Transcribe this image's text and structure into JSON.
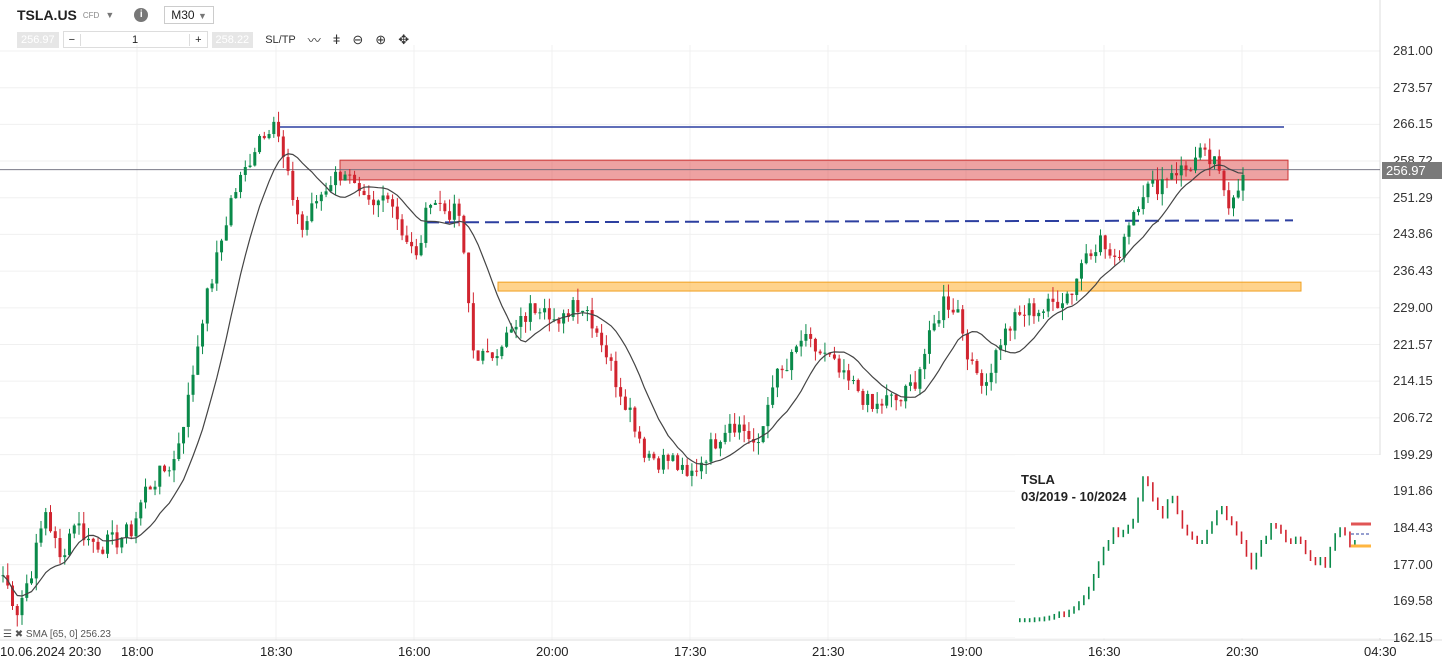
{
  "header": {
    "symbol": "TSLA.US",
    "type": "CFD",
    "timeframe": "M30",
    "sell_price": "256.97",
    "quantity": "1",
    "buy_price": "258.22",
    "sltp_label": "SL/TP",
    "tools": [
      "line-chart-icon",
      "candlestick-icon",
      "zoom-out-icon",
      "zoom-in-icon",
      "crosshair-icon"
    ]
  },
  "indicator": {
    "label": "SMA [65, 0] 256.23"
  },
  "current_price": "256.97",
  "colors": {
    "up": "#0a8a4a",
    "down": "#d1242f",
    "sma": "#444444",
    "resistance_zone": "#e05555",
    "support_zone": "#ffb640",
    "level_line": "#2c3fa0"
  },
  "inset": {
    "title": "TSLA",
    "subtitle": "03/2019 - 10/2024"
  },
  "chart_data": {
    "type": "candlestick",
    "ylim": [
      162.15,
      281.0
    ],
    "y_ticks": [
      "281.00",
      "273.57",
      "266.15",
      "258.72",
      "251.29",
      "243.86",
      "236.43",
      "229.00",
      "221.57",
      "214.15",
      "206.72",
      "199.29",
      "191.86",
      "184.43",
      "177.00",
      "169.58",
      "162.15"
    ],
    "x_ticks": [
      "10.06.2024 20:30",
      "18:00",
      "18:30",
      "16:00",
      "20:00",
      "17:30",
      "21:30",
      "19:00",
      "16:30",
      "20:30",
      "04:30"
    ],
    "closes": [
      174.9,
      167.8,
      175.9,
      188.0,
      177.9,
      186.0,
      182.0,
      181.0,
      182.0,
      184.0,
      192.1,
      195.1,
      198.2,
      210.3,
      227.5,
      238.7,
      250.8,
      256.9,
      264.0,
      267.0,
      254.9,
      244.8,
      250.8,
      254.9,
      256.9,
      250.8,
      248.8,
      252.9,
      244.8,
      238.7,
      251.8,
      248.8,
      247.8,
      220.5,
      218.4,
      222.5,
      224.5,
      228.6,
      230.6,
      224.5,
      230.6,
      228.6,
      222.5,
      214.4,
      208.3,
      200.2,
      198.2,
      198.2,
      194.1,
      198.2,
      202.2,
      206.3,
      204.3,
      200.2,
      214.4,
      216.4,
      222.5,
      220.5,
      218.4,
      214.4,
      212.4,
      208.3,
      210.3,
      210.3,
      214.4,
      222.5,
      230.6,
      228.6,
      216.4,
      214.4,
      222.5,
      226.5,
      228.6,
      228.6,
      230.6,
      232.6,
      240.7,
      242.7,
      237.7,
      246.8,
      252.9,
      253.9,
      256.9,
      256.9,
      259.9,
      257.9,
      250.8,
      255.9
    ],
    "sma_period": 65,
    "levels": {
      "resistance_zone": [
        254.9,
        258.9
      ],
      "support_zone": [
        232.4,
        234.2
      ],
      "horizontal_line": 265.6,
      "dashed_trendline": [
        246.3,
        246.7
      ]
    }
  }
}
